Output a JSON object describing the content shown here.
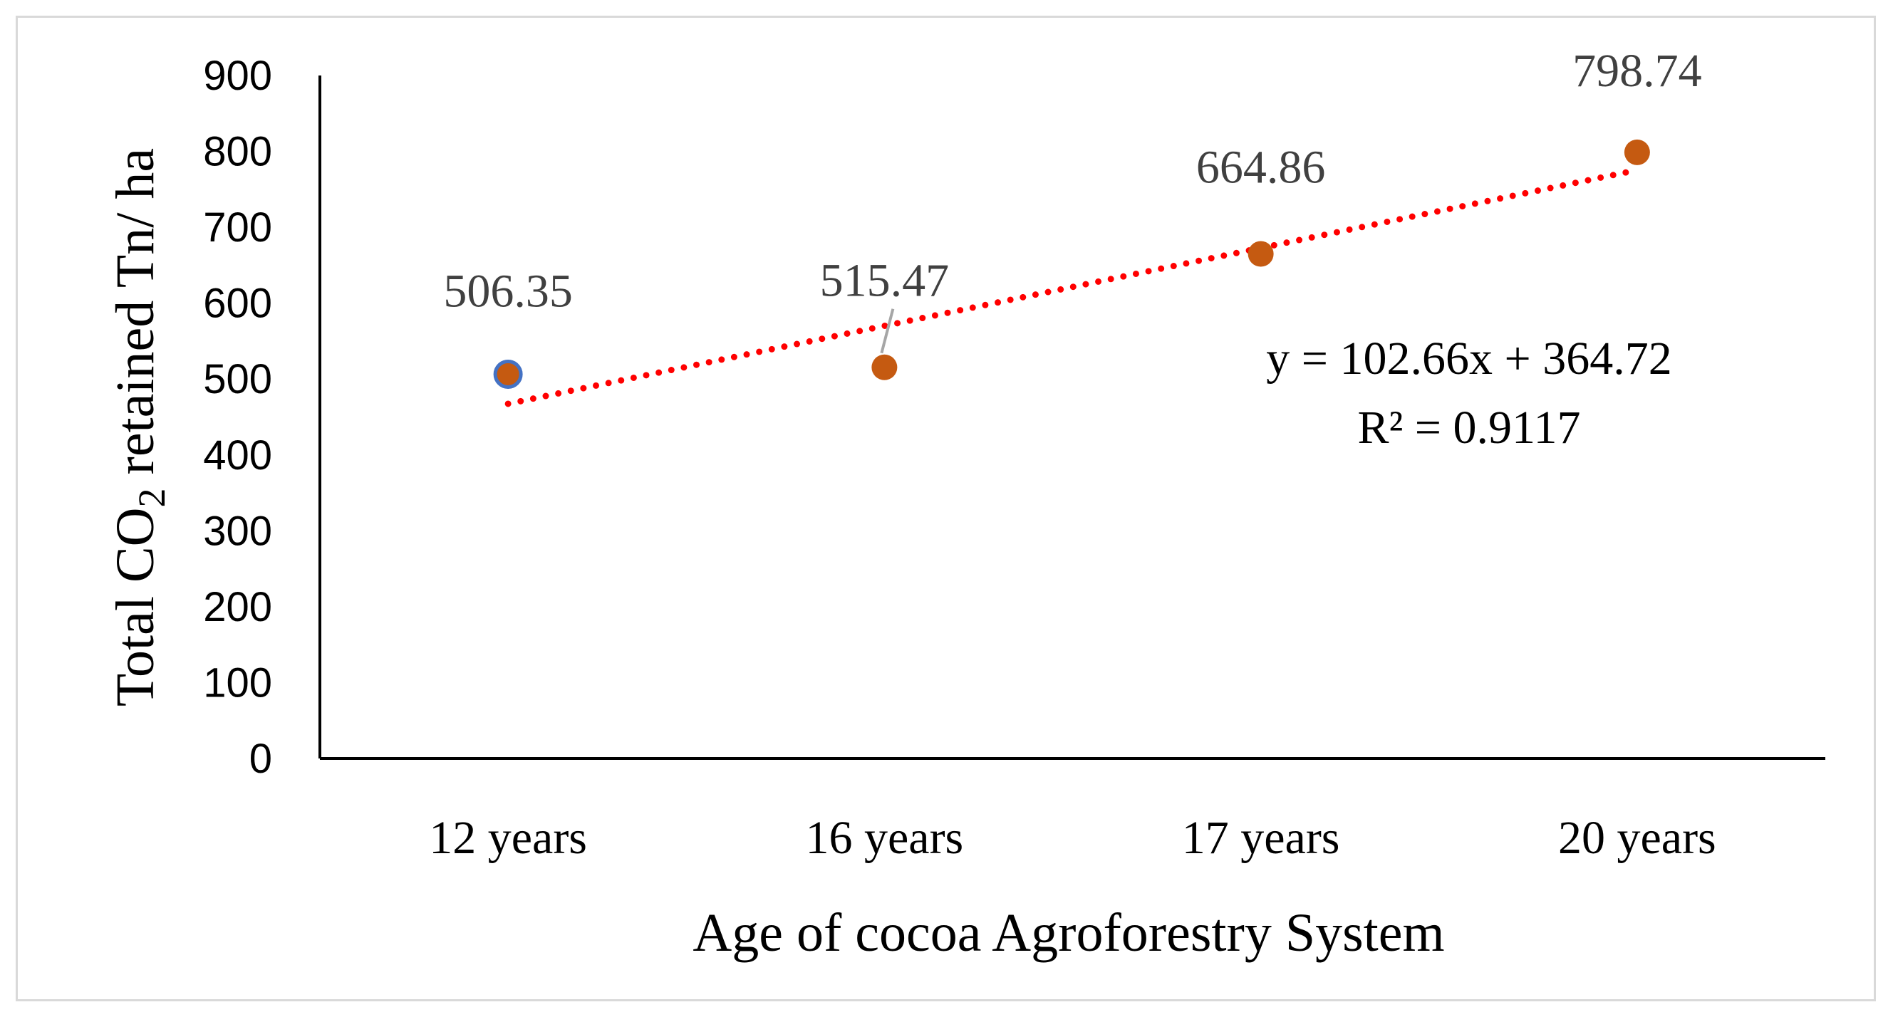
{
  "chart_data": {
    "type": "scatter",
    "title": "",
    "xlabel": "Age of cocoa Agroforestry System",
    "ylabel": {
      "prefix": "Total CO",
      "subscript": "2",
      "suffix": " retained Tn/ ha"
    },
    "categories": [
      "12 years",
      "16 years",
      "17 years",
      "20 years"
    ],
    "series": [
      {
        "name": "Total CO2 retained",
        "values": [
          506.35,
          515.47,
          664.86,
          798.74
        ],
        "color": "#c55a11"
      }
    ],
    "data_labels": [
      "506.35",
      "515.47",
      "664.86",
      "798.74"
    ],
    "ylim": [
      0,
      900
    ],
    "yticks": [
      "0",
      "100",
      "200",
      "300",
      "400",
      "500",
      "600",
      "700",
      "800",
      "900"
    ],
    "yticks_values": [
      0,
      100,
      200,
      300,
      400,
      500,
      600,
      700,
      800,
      900
    ],
    "grid": false,
    "trendline": {
      "type": "linear",
      "slope": 102.66,
      "intercept": 364.72,
      "equation": "y = 102.66x + 364.72",
      "r_squared": "R² = 0.9117",
      "color": "#ff0000"
    },
    "highlight_color": "#4472c4"
  }
}
